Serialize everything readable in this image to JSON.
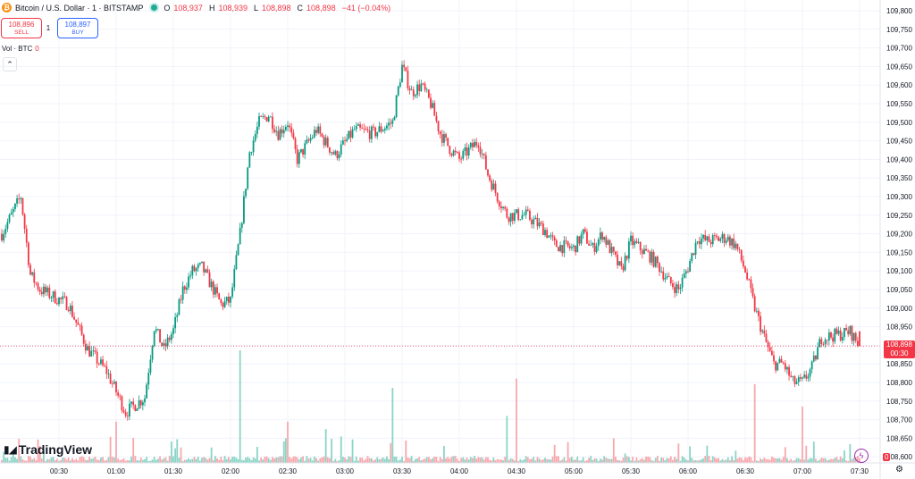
{
  "header": {
    "symbol": "Bitcoin / U.S. Dollar · 1 · BITSTAMP",
    "o_label": "O",
    "o": "108,937",
    "h_label": "H",
    "h": "108,939",
    "l_label": "L",
    "l": "108,898",
    "c_label": "C",
    "c": "108,898",
    "change": "−41 (−0.04%)"
  },
  "trade": {
    "sell_price": "108,896",
    "sell_label": "SELL",
    "qty": "1",
    "buy_price": "108,897",
    "buy_label": "BUY"
  },
  "volume": {
    "label": "Vol · BTC",
    "value": "0"
  },
  "collapse_icon": "chevron-up",
  "branding": {
    "name": "TradingView"
  },
  "last_price": {
    "value": "108,898",
    "countdown": "00:30"
  },
  "volume_tag": "0",
  "colors": {
    "up": "#089981",
    "down": "#f23645",
    "vol_up": "#8bd4c6",
    "vol_down": "#f7a8ad"
  },
  "chart_data": {
    "type": "candlestick",
    "x_tick_labels": [
      "00:30",
      "01:00",
      "01:30",
      "02:00",
      "02:30",
      "03:00",
      "03:30",
      "04:00",
      "04:30",
      "05:00",
      "05:30",
      "06:00",
      "06:30",
      "07:00",
      "07:30"
    ],
    "y_tick_labels": [
      108600,
      108650,
      108700,
      108750,
      108800,
      108850,
      108900,
      108950,
      109000,
      109050,
      109100,
      109150,
      109200,
      109250,
      109300,
      109350,
      109400,
      109450,
      109500,
      109550,
      109600,
      109650,
      109700,
      109750,
      109800
    ],
    "ylim": [
      108580,
      109820
    ],
    "last_price": 108898,
    "close_path": [
      [
        "00:00",
        109200
      ],
      [
        "00:10",
        109300
      ],
      [
        "00:15",
        109090
      ],
      [
        "00:20",
        109050
      ],
      [
        "00:35",
        109010
      ],
      [
        "00:45",
        108890
      ],
      [
        "00:55",
        108830
      ],
      [
        "01:05",
        108720
      ],
      [
        "01:15",
        108760
      ],
      [
        "01:20",
        108950
      ],
      [
        "01:25",
        108890
      ],
      [
        "01:30",
        108940
      ],
      [
        "01:35",
        109050
      ],
      [
        "01:40",
        109100
      ],
      [
        "01:45",
        109110
      ],
      [
        "01:50",
        109060
      ],
      [
        "01:55",
        109010
      ],
      [
        "02:00",
        109020
      ],
      [
        "02:05",
        109200
      ],
      [
        "02:10",
        109420
      ],
      [
        "02:15",
        109500
      ],
      [
        "02:20",
        109520
      ],
      [
        "02:25",
        109470
      ],
      [
        "02:30",
        109500
      ],
      [
        "02:35",
        109400
      ],
      [
        "02:45",
        109480
      ],
      [
        "02:55",
        109410
      ],
      [
        "03:05",
        109480
      ],
      [
        "03:15",
        109470
      ],
      [
        "03:25",
        109500
      ],
      [
        "03:30",
        109650
      ],
      [
        "03:35",
        109580
      ],
      [
        "03:40",
        109600
      ],
      [
        "03:45",
        109550
      ],
      [
        "03:50",
        109470
      ],
      [
        "03:55",
        109430
      ],
      [
        "04:00",
        109400
      ],
      [
        "04:10",
        109450
      ],
      [
        "04:15",
        109360
      ],
      [
        "04:20",
        109300
      ],
      [
        "04:25",
        109250
      ],
      [
        "04:35",
        109250
      ],
      [
        "04:45",
        109210
      ],
      [
        "04:50",
        109170
      ],
      [
        "05:00",
        109160
      ],
      [
        "05:05",
        109200
      ],
      [
        "05:10",
        109160
      ],
      [
        "05:15",
        109200
      ],
      [
        "05:20",
        109150
      ],
      [
        "05:25",
        109100
      ],
      [
        "05:30",
        109180
      ],
      [
        "05:40",
        109140
      ],
      [
        "05:45",
        109110
      ],
      [
        "05:50",
        109070
      ],
      [
        "05:55",
        109050
      ],
      [
        "06:00",
        109110
      ],
      [
        "06:05",
        109190
      ],
      [
        "06:10",
        109180
      ],
      [
        "06:20",
        109190
      ],
      [
        "06:25",
        109170
      ],
      [
        "06:30",
        109100
      ],
      [
        "06:35",
        109000
      ],
      [
        "06:40",
        108920
      ],
      [
        "06:45",
        108850
      ],
      [
        "06:50",
        108850
      ],
      [
        "06:55",
        108800
      ],
      [
        "07:00",
        108800
      ],
      [
        "07:05",
        108840
      ],
      [
        "07:10",
        108920
      ],
      [
        "07:20",
        108930
      ],
      [
        "07:25",
        108937
      ],
      [
        "07:30",
        108898
      ]
    ],
    "volume_spikes": [
      [
        "01:00",
        22,
        "down"
      ],
      [
        "02:05",
        60,
        "up"
      ],
      [
        "02:30",
        22,
        "down"
      ],
      [
        "02:50",
        18,
        "up"
      ],
      [
        "03:25",
        40,
        "up"
      ],
      [
        "04:25",
        25,
        "up"
      ],
      [
        "04:30",
        45,
        "down"
      ],
      [
        "06:35",
        42,
        "down"
      ],
      [
        "07:00",
        30,
        "down"
      ],
      [
        "07:25",
        10,
        "up"
      ]
    ]
  }
}
